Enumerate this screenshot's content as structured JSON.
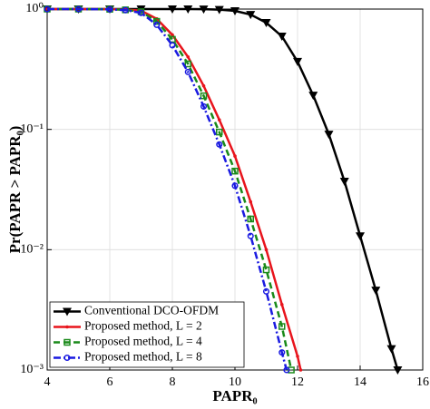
{
  "chart_data": {
    "type": "line",
    "xlabel": "PAPR₀",
    "ylabel": "Pr(PAPR > PAPR₀)",
    "xlim": [
      4,
      16
    ],
    "xticks": [
      4,
      6,
      8,
      10,
      12,
      14,
      16
    ],
    "ylim": [
      0.001,
      1
    ],
    "log_y": true,
    "yticks": [
      {
        "value": 1,
        "label": "10⁰"
      },
      {
        "value": 0.1,
        "label": "10⁻¹"
      },
      {
        "value": 0.01,
        "label": "10⁻²"
      },
      {
        "value": 0.001,
        "label": "10⁻³"
      }
    ],
    "grid": true,
    "legend": "lower left",
    "series": [
      {
        "name": "Conventional DCO-OFDM",
        "color": "#000000",
        "marker": "triangle-down",
        "x": [
          4,
          5,
          6,
          7,
          8,
          8.5,
          9,
          9.5,
          10,
          10.5,
          11,
          11.5,
          12,
          12.5,
          13,
          13.5,
          14,
          14.5,
          15,
          15.2
        ],
        "values": [
          1,
          1,
          1,
          1,
          1,
          0.999,
          0.998,
          0.99,
          0.966,
          0.9,
          0.77,
          0.594,
          0.366,
          0.192,
          0.091,
          0.037,
          0.013,
          0.0046,
          0.0015,
          0.001
        ]
      },
      {
        "name": "Proposed method, L = 2",
        "color": "#e8141c",
        "marker": "dot",
        "x": [
          4,
          5,
          6,
          6.5,
          7,
          7.5,
          8,
          8.5,
          9,
          9.5,
          10,
          10.5,
          11,
          11.5,
          12,
          12.1
        ],
        "values": [
          1,
          1,
          0.998,
          0.99,
          0.97,
          0.83,
          0.61,
          0.4,
          0.23,
          0.12,
          0.06,
          0.025,
          0.01,
          0.0035,
          0.0013,
          0.001
        ]
      },
      {
        "name": "Proposed method, L = 4",
        "color": "#1a8a1a",
        "marker": "square",
        "x": [
          4,
          5,
          6,
          6.5,
          7,
          7.5,
          8,
          8.5,
          9,
          9.5,
          10,
          10.5,
          11,
          11.5,
          11.8
        ],
        "values": [
          1,
          1,
          0.997,
          0.985,
          0.95,
          0.79,
          0.56,
          0.35,
          0.19,
          0.095,
          0.045,
          0.018,
          0.0068,
          0.0023,
          0.001
        ]
      },
      {
        "name": "Proposed method, L = 8",
        "color": "#1a1ae0",
        "marker": "circle",
        "x": [
          4,
          5,
          6,
          6.5,
          7,
          7.5,
          8,
          8.5,
          9,
          9.5,
          10,
          10.5,
          11,
          11.5,
          11.65
        ],
        "values": [
          1,
          1,
          0.995,
          0.98,
          0.93,
          0.74,
          0.5,
          0.3,
          0.155,
          0.075,
          0.034,
          0.013,
          0.0045,
          0.0014,
          0.001
        ]
      }
    ]
  }
}
